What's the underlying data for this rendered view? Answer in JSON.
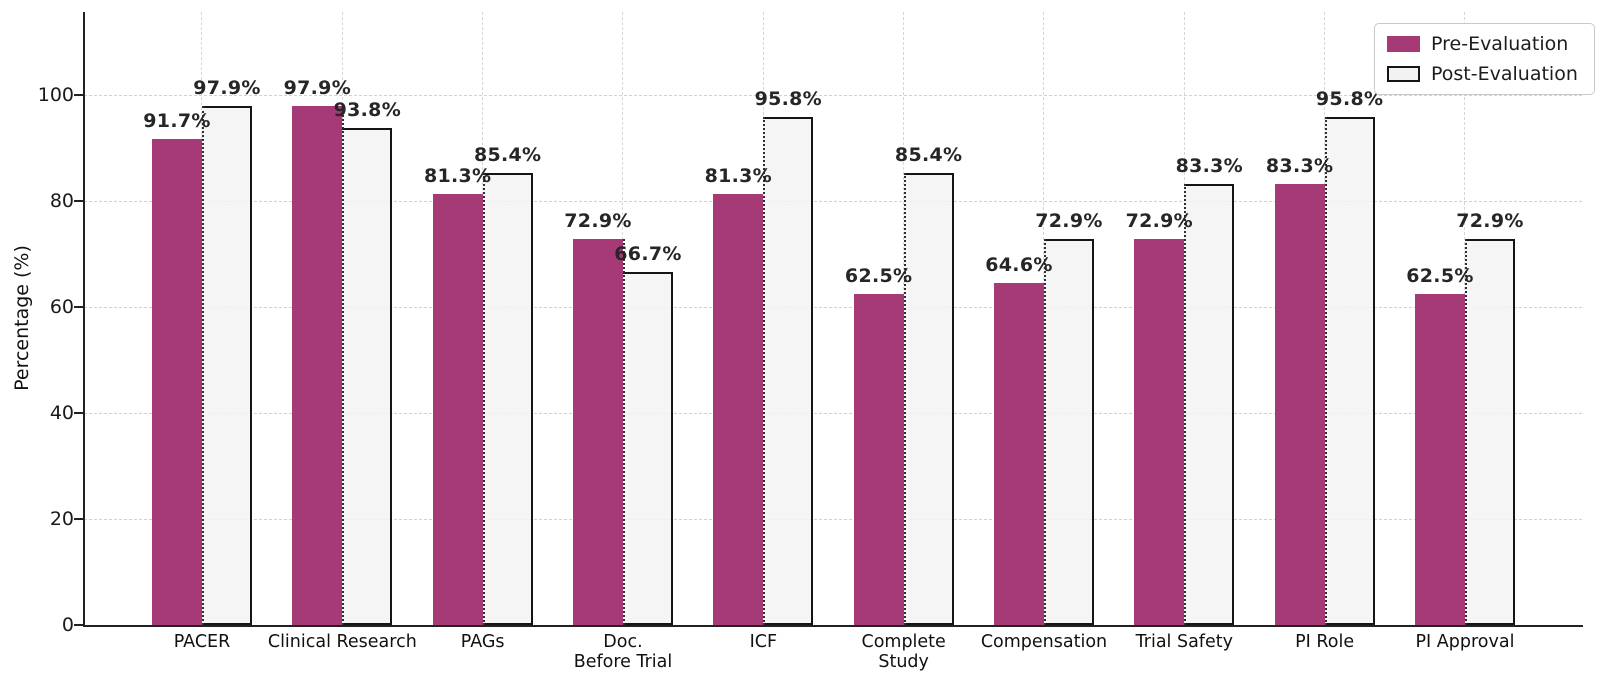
{
  "chart_data": {
    "type": "bar",
    "title": "",
    "xlabel": "",
    "ylabel": "Percentage (%)",
    "ylim": [
      0,
      115.7
    ],
    "yticks": [
      0,
      20,
      40,
      60,
      80,
      100
    ],
    "grid": true,
    "legend_position": "top-right",
    "value_label_suffix": "%",
    "categories": [
      "PACER",
      "Clinical Research",
      "PAGs",
      "Doc.\nBefore Trial",
      "ICF",
      "Complete\nStudy",
      "Compensation",
      "Trial Safety",
      "PI Role",
      "PI Approval"
    ],
    "series": [
      {
        "name": "Pre-Evaluation",
        "color": "#a53a77",
        "values": [
          91.7,
          97.9,
          81.3,
          72.9,
          81.3,
          62.5,
          64.6,
          72.9,
          83.3,
          62.5
        ]
      },
      {
        "name": "Post-Evaluation",
        "color": "#f2f2f2",
        "edge_color": "#151515",
        "values": [
          97.9,
          93.8,
          85.4,
          66.7,
          95.8,
          85.4,
          72.9,
          83.3,
          95.8,
          72.9
        ]
      }
    ],
    "value_labels": {
      "pre": [
        "91.7%",
        "97.9%",
        "81.3%",
        "72.9%",
        "81.3%",
        "62.5%",
        "64.6%",
        "72.9%",
        "83.3%",
        "62.5%"
      ],
      "post": [
        "97.9%",
        "93.8%",
        "85.4%",
        "66.7%",
        "95.8%",
        "85.4%",
        "72.9%",
        "83.3%",
        "95.8%",
        "72.9%"
      ]
    }
  },
  "colors": {
    "pre_bar": "#a53a77",
    "post_bar_fill": "#f2f2f2",
    "bar_edge": "#151515",
    "grid": "#d2d2d2",
    "axis": "#222222",
    "label_text": "#262626"
  }
}
